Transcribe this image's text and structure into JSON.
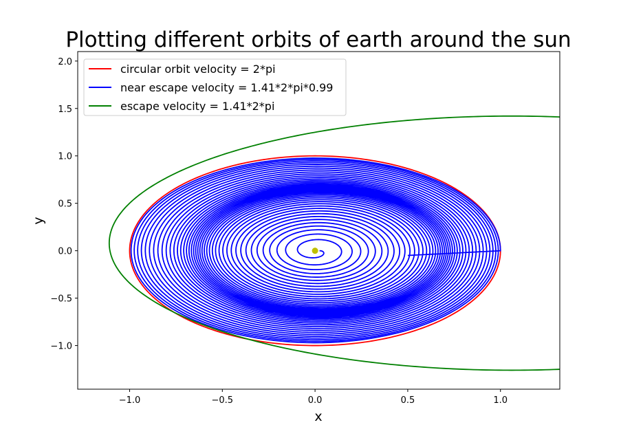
{
  "chart_data": {
    "type": "line",
    "title": "Plotting different orbits of earth around the sun",
    "xlabel": "x",
    "ylabel": "y",
    "xlim": [
      -1.28,
      1.32
    ],
    "ylim": [
      -1.46,
      2.1
    ],
    "xticks": [
      -1.0,
      -0.5,
      0.0,
      0.5,
      1.0
    ],
    "xtick_labels": [
      "−1.0",
      "−0.5",
      "0.0",
      "0.5",
      "1.0"
    ],
    "yticks": [
      -1.0,
      -0.5,
      0.0,
      0.5,
      1.0,
      1.5,
      2.0
    ],
    "ytick_labels": [
      "−1.0",
      "−0.5",
      "0.0",
      "0.5",
      "1.0",
      "1.5",
      "2.0"
    ],
    "grid": false,
    "legend_position": "top-left",
    "series": [
      {
        "name": "circular orbit velocity = 2*pi",
        "color": "#ff0000",
        "shape": "circle",
        "center": [
          0.0,
          0.0
        ],
        "radius": 1.0
      },
      {
        "name": "near escape velocity = 1.41*2*pi*0.99",
        "color": "#0000ff",
        "shape": "spiral",
        "start": [
          0.5,
          -0.05
        ],
        "end_radius": 0.02,
        "outer_radius": 1.0
      },
      {
        "name": "escape velocity = 1.41*2*pi",
        "color": "#008000",
        "shape": "ellipse",
        "center": [
          1.06,
          0.08
        ],
        "semi_axes": [
          2.17,
          1.34
        ]
      }
    ],
    "annotations": [
      {
        "name": "sun",
        "x": 0.0,
        "y": 0.0,
        "color": "#bfbf00"
      }
    ]
  }
}
